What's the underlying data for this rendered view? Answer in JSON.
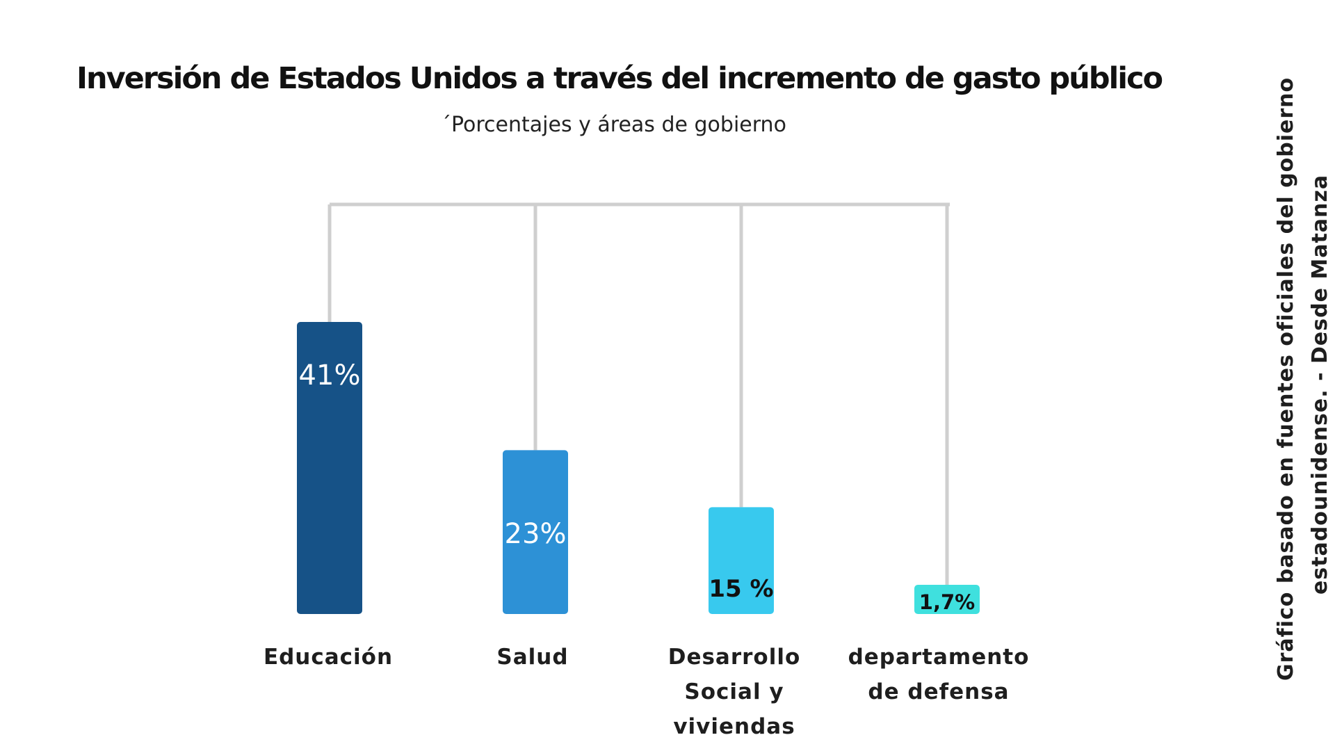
{
  "chart_data": {
    "type": "bar",
    "title": "Inversión de Estados Unidos a través del incremento de gasto público",
    "subtitle": "´Porcentajes y áreas de gobierno",
    "xlabel": "",
    "ylabel": "",
    "categories": [
      [
        "Educación"
      ],
      [
        "Salud"
      ],
      [
        "Desarrollo",
        "Social y",
        "viviendas"
      ],
      [
        "departamento",
        "de defensa"
      ]
    ],
    "values": [
      41,
      23,
      15,
      1.7
    ],
    "value_labels": [
      "41%",
      "23%",
      "15 %",
      "1,7%"
    ],
    "colors": [
      "#165287",
      "#2d91d6",
      "#38c9ee",
      "#3fe0de"
    ],
    "label_colors": [
      "#ffffff",
      "#ffffff",
      "#111111",
      "#111111"
    ],
    "ylim": [
      0,
      41
    ],
    "grid": false,
    "legend": "none"
  },
  "source_note": {
    "lines": [
      "Gráfico basado en fuentes oficiales del gobierno",
      "estadounidense. - Desde Matanza"
    ]
  }
}
